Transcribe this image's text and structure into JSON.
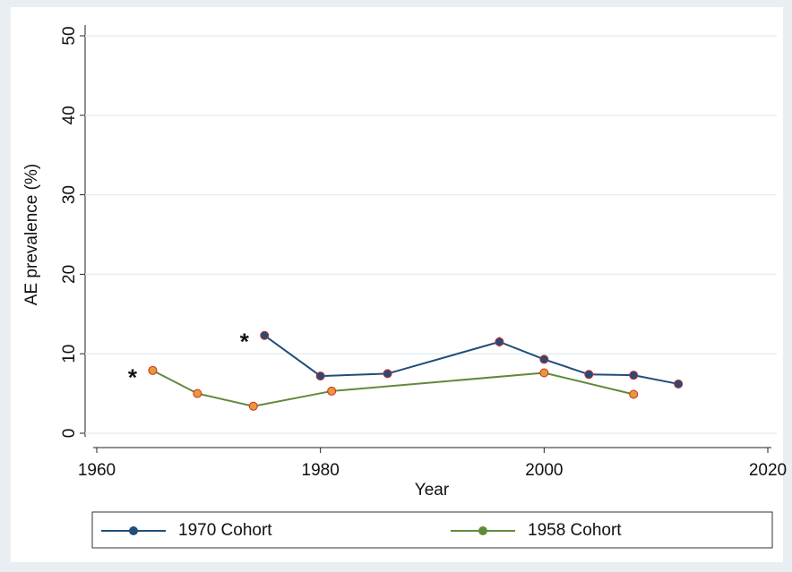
{
  "chart_data": {
    "type": "line",
    "y_label": "AE prevalence (%)",
    "x_label": "Year",
    "xlim": [
      1960,
      2020
    ],
    "xticks": [
      1960,
      1980,
      2000,
      2020
    ],
    "ylim": [
      0,
      50
    ],
    "yticks": [
      0,
      10,
      20,
      30,
      40,
      50
    ],
    "grid": true,
    "error_color": "#d62728",
    "series": [
      {
        "name": "1970 Cohort",
        "color": "#1f4e79",
        "marker_color": "#1f4e79",
        "x": [
          1975,
          1980,
          1986,
          1996,
          2000,
          2004,
          2008,
          2012
        ],
        "values": [
          12.3,
          7.2,
          7.5,
          11.5,
          9.3,
          7.4,
          7.3,
          6.2
        ],
        "errors": [
          0.5,
          0.4,
          0.4,
          0.6,
          0.5,
          0.4,
          0.4,
          0.4
        ]
      },
      {
        "name": "1958 Cohort",
        "color": "#5f8a3a",
        "marker_color": "#e39a3b",
        "x": [
          1965,
          1969,
          1974,
          1981,
          2000,
          2008
        ],
        "values": [
          7.9,
          5.0,
          3.4,
          5.3,
          7.6,
          4.9
        ],
        "errors": [
          0.3,
          0.3,
          0.3,
          0.3,
          0.3,
          0.3
        ]
      }
    ],
    "annotations": [
      {
        "text": "*",
        "x": 1963.2,
        "y": 6.8
      },
      {
        "text": "*",
        "x": 1973.2,
        "y": 11.3
      }
    ]
  }
}
